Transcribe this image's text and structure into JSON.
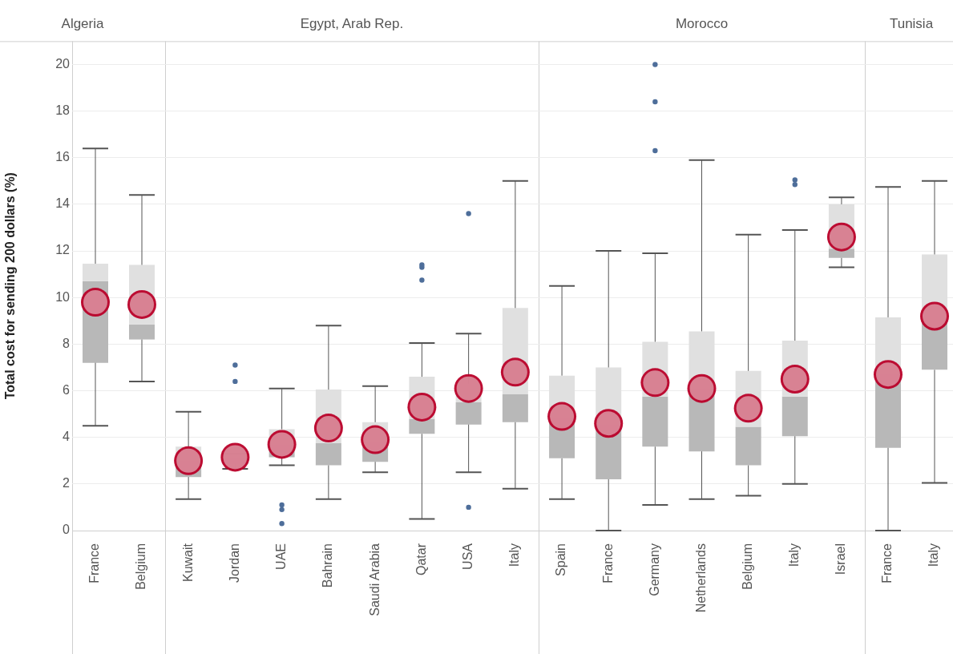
{
  "chart_data": [
    {
      "type": "box",
      "title": "Algeria",
      "ylabel": "Total cost for sending 200 dollars (%)",
      "categories": [
        "France",
        "Belgium"
      ],
      "ylim": [
        0,
        21
      ],
      "yticks": [
        0,
        2,
        4,
        6,
        8,
        10,
        12,
        14,
        16,
        18,
        20
      ],
      "grid": "y",
      "boxes": [
        {
          "low": 4.5,
          "q1": 7.2,
          "median": 10.7,
          "q3": 11.45,
          "high": 16.4,
          "mean": 9.8
        },
        {
          "low": 6.4,
          "q1": 8.2,
          "median": 8.85,
          "q3": 11.4,
          "high": 14.4,
          "mean": 9.7
        }
      ]
    },
    {
      "type": "box",
      "title": "Egypt, Arab Rep.",
      "categories": [
        "Kuwait",
        "Jordan",
        "UAE",
        "Bahrain",
        "Saudi Arabia",
        "Qatar",
        "USA",
        "Italy"
      ],
      "ylim": [
        0,
        21
      ],
      "yticks": [
        0,
        2,
        4,
        6,
        8,
        10,
        12,
        14,
        16,
        18,
        20
      ],
      "grid": "y",
      "tick_labels": "x",
      "boxes": [
        {
          "low": 1.35,
          "q1": 2.3,
          "median": 3.0,
          "q3": 3.6,
          "high": 5.1,
          "mean": 3.0
        },
        {
          "low": 2.65,
          "q1": 2.85,
          "median": 3.1,
          "q3": 3.3,
          "high": 3.3,
          "mean": 3.15,
          "outliers": [
            6.4,
            7.1
          ]
        },
        {
          "low": 2.8,
          "q1": 3.15,
          "median": 3.7,
          "q3": 4.35,
          "high": 6.1,
          "mean": 3.7,
          "outliers": [
            0.3,
            0.9,
            1.1
          ]
        },
        {
          "low": 1.35,
          "q1": 2.8,
          "median": 3.75,
          "q3": 6.05,
          "high": 8.8,
          "mean": 4.4
        },
        {
          "low": 2.5,
          "q1": 2.95,
          "median": 3.8,
          "q3": 4.65,
          "high": 6.2,
          "mean": 3.9
        },
        {
          "low": 0.5,
          "q1": 4.15,
          "median": 4.8,
          "q3": 6.6,
          "high": 8.05,
          "mean": 5.3,
          "outliers": [
            10.75,
            11.3,
            11.4
          ]
        },
        {
          "low": 2.5,
          "q1": 4.55,
          "median": 5.5,
          "q3": 6.3,
          "high": 8.45,
          "mean": 6.1,
          "outliers": [
            1.0,
            13.6
          ]
        },
        {
          "low": 1.8,
          "q1": 4.65,
          "median": 5.85,
          "q3": 9.55,
          "high": 15.0,
          "mean": 6.8
        }
      ]
    },
    {
      "type": "box",
      "title": "Morocco",
      "categories": [
        "Spain",
        "France",
        "Germany",
        "Netherlands",
        "Belgium",
        "Italy",
        "Israel"
      ],
      "ylim": [
        0,
        21
      ],
      "yticks": [
        0,
        2,
        4,
        6,
        8,
        10,
        12,
        14,
        16,
        18,
        20
      ],
      "grid": "y",
      "tick_labels": "x",
      "boxes": [
        {
          "low": 1.35,
          "q1": 3.1,
          "median": 4.85,
          "q3": 6.65,
          "high": 10.5,
          "mean": 4.9
        },
        {
          "low": 0,
          "q1": 2.2,
          "median": 4.55,
          "q3": 7.0,
          "high": 12.0,
          "mean": 4.6
        },
        {
          "low": 1.1,
          "q1": 3.6,
          "median": 5.75,
          "q3": 8.1,
          "high": 11.9,
          "mean": 6.35,
          "outliers": [
            16.3,
            18.4,
            20.0
          ]
        },
        {
          "low": 1.35,
          "q1": 3.4,
          "median": 6.1,
          "q3": 8.55,
          "high": 15.9,
          "mean": 6.1
        },
        {
          "low": 1.5,
          "q1": 2.8,
          "median": 4.45,
          "q3": 6.85,
          "high": 12.7,
          "mean": 5.25
        },
        {
          "low": 2.0,
          "q1": 4.05,
          "median": 5.75,
          "q3": 8.15,
          "high": 12.9,
          "mean": 6.5,
          "outliers": [
            14.85,
            15.05
          ]
        },
        {
          "low": 11.3,
          "q1": 11.7,
          "median": 12.1,
          "q3": 14.0,
          "high": 14.3,
          "mean": 12.6
        }
      ]
    },
    {
      "type": "box",
      "title": "Tunisia",
      "categories": [
        "France",
        "Italy"
      ],
      "ylim": [
        0,
        21
      ],
      "yticks": [
        0,
        2,
        4,
        6,
        8,
        10,
        12,
        14,
        16,
        18,
        20
      ],
      "grid": "y",
      "tick_labels": "x",
      "boxes": [
        {
          "low": 0,
          "q1": 3.55,
          "median": 6.7,
          "q3": 9.15,
          "high": 14.75,
          "mean": 6.7
        },
        {
          "low": 2.05,
          "q1": 6.9,
          "median": 9.05,
          "q3": 11.85,
          "high": 15.0,
          "mean": 9.2
        }
      ]
    }
  ]
}
